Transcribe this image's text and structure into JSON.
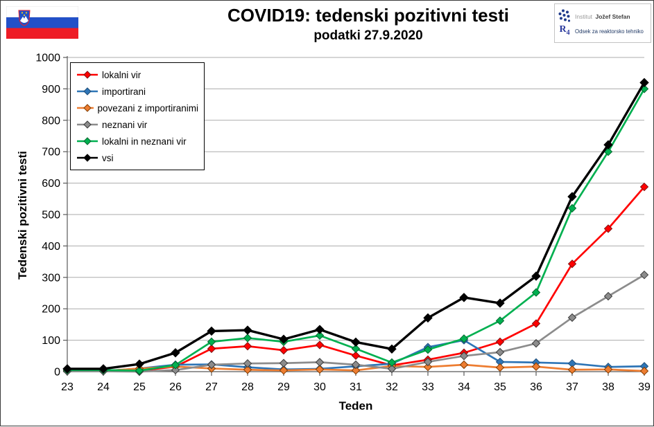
{
  "page": {
    "title": "COVID19: tedenski pozitivni testi",
    "subtitle": "podatki 27.9.2020"
  },
  "branding": {
    "institute_prefix": "Institut",
    "institute_name": "Jožef Stefan",
    "r4_label": "R4",
    "department": "Odsek za reaktorsko tehniko",
    "dot_logo_color": "#1f3b8c",
    "flag_colors": {
      "white": "#ffffff",
      "blue": "#2250c8",
      "red": "#ee1c25"
    }
  },
  "chart_data": {
    "type": "line",
    "title": "COVID19: tedenski pozitivni testi",
    "subtitle": "podatki 27.9.2020",
    "xlabel": "Teden",
    "ylabel": "Tedenski pozitivni testi",
    "x": [
      23,
      24,
      25,
      26,
      27,
      28,
      29,
      30,
      31,
      32,
      33,
      34,
      35,
      36,
      37,
      38,
      39
    ],
    "ylim": [
      0,
      1000
    ],
    "ytick_step": 100,
    "grid": "horizontal",
    "legend_position": "top-left-inside",
    "marker": "diamond",
    "axis_color": "#595959",
    "grid_color": "#ababab",
    "series": [
      {
        "name": "lokalni vir",
        "color": "#ff0000",
        "edge": "#7f1212",
        "values": [
          4,
          4,
          3,
          16,
          73,
          81,
          68,
          85,
          51,
          20,
          38,
          60,
          95,
          153,
          343,
          455,
          588
        ]
      },
      {
        "name": "importirani",
        "color": "#2e75b6",
        "edge": "#1f4e79",
        "values": [
          2,
          2,
          10,
          22,
          23,
          14,
          7,
          9,
          17,
          25,
          78,
          100,
          31,
          29,
          26,
          15,
          17
        ]
      },
      {
        "name": "povezani z importiranimi",
        "color": "#ed7d31",
        "edge": "#833c00",
        "values": [
          2,
          2,
          10,
          16,
          10,
          6,
          4,
          7,
          4,
          18,
          15,
          22,
          13,
          16,
          6,
          7,
          2
        ]
      },
      {
        "name": "neznani vir",
        "color": "#8c8c8c",
        "edge": "#3b3b3b",
        "values": [
          1,
          1,
          0,
          5,
          22,
          26,
          27,
          30,
          22,
          9,
          31,
          50,
          62,
          90,
          172,
          240,
          308
        ]
      },
      {
        "name": "lokalni in neznani vir",
        "color": "#00b050",
        "edge": "#00662e",
        "values": [
          5,
          5,
          3,
          21,
          95,
          107,
          95,
          115,
          73,
          29,
          70,
          105,
          162,
          252,
          520,
          700,
          900
        ]
      },
      {
        "name": "vsi",
        "color": "#000000",
        "edge": "#000000",
        "values": [
          9,
          9,
          24,
          60,
          129,
          132,
          103,
          134,
          94,
          72,
          171,
          236,
          218,
          304,
          557,
          722,
          920
        ]
      }
    ]
  }
}
